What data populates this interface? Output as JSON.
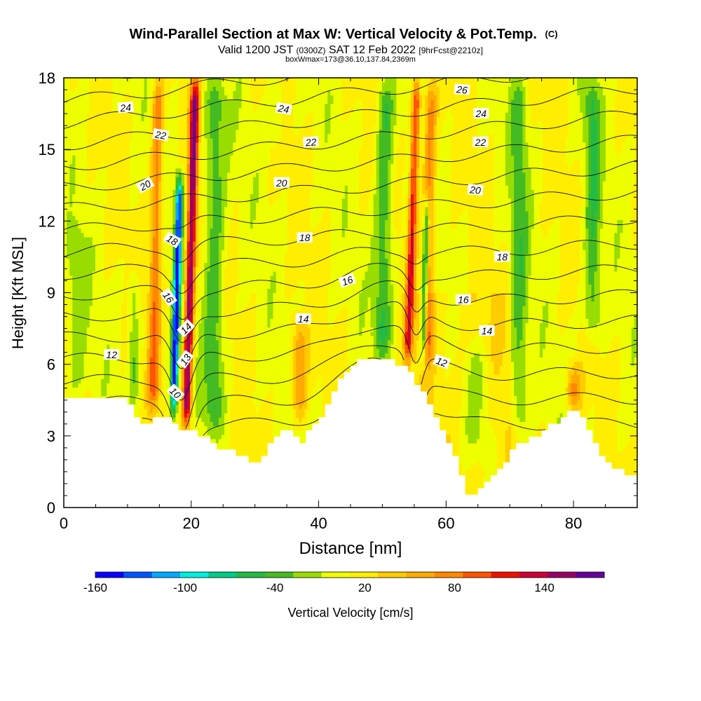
{
  "title": {
    "main": "Wind-Parallel Section at Max W: Vertical Velocity & Pot.Temp.",
    "main_tag": "(C)",
    "line2_a": "Valid 1200 JST",
    "line2_b": "(0300Z)",
    "line2_c": "SAT 12 Feb 2022",
    "line2_d": "[9hrFcst@2210z]",
    "line3": "boxWmax=173@36.10,137.84,2369m"
  },
  "chart_data": {
    "type": "heatmap",
    "xlabel": "Distance [nm]",
    "ylabel": "Height [Kft MSL]",
    "xlim": [
      0,
      90
    ],
    "ylim": [
      0,
      18
    ],
    "x_ticks": [
      "0",
      "20",
      "40",
      "60",
      "80"
    ],
    "x_tick_values": [
      0,
      20,
      40,
      60,
      80
    ],
    "y_ticks": [
      "0",
      "3",
      "6",
      "9",
      "12",
      "15",
      "18"
    ],
    "y_tick_values": [
      0,
      3,
      6,
      9,
      12,
      15,
      18
    ],
    "colorbar": {
      "label": "Vertical Velocity [cm/s]",
      "tick_labels": [
        "-160",
        "-100",
        "-40",
        "20",
        "80",
        "140"
      ],
      "tick_values": [
        -160,
        -100,
        -40,
        20,
        80,
        140
      ],
      "range": [
        -160,
        180
      ],
      "bin_width": 20,
      "colors": [
        "#0a00ff",
        "#0055ff",
        "#00aaff",
        "#00eedd",
        "#00cc88",
        "#22bb44",
        "#44bb22",
        "#99dd00",
        "#eeff00",
        "#ffee00",
        "#ffcc00",
        "#ffaa00",
        "#ff8800",
        "#ff5500",
        "#ee1100",
        "#cc0033",
        "#990066",
        "#660099"
      ]
    },
    "terrain_kft": [
      [
        0,
        4.5
      ],
      [
        10,
        4.5
      ],
      [
        11,
        4.0
      ],
      [
        13,
        3.5
      ],
      [
        15,
        3.8
      ],
      [
        17,
        3.6
      ],
      [
        18,
        3.3
      ],
      [
        21,
        3.1
      ],
      [
        24,
        2.6
      ],
      [
        28,
        2.2
      ],
      [
        30,
        1.9
      ],
      [
        32,
        2.4
      ],
      [
        34,
        3.2
      ],
      [
        36,
        3.1
      ],
      [
        37,
        2.6
      ],
      [
        39,
        3.3
      ],
      [
        41,
        4.0
      ],
      [
        43,
        5.2
      ],
      [
        45,
        5.8
      ],
      [
        47,
        6.3
      ],
      [
        49,
        6.1
      ],
      [
        52,
        6.1
      ],
      [
        54,
        6.0
      ],
      [
        56,
        5.0
      ],
      [
        58,
        4.0
      ],
      [
        60,
        3.0
      ],
      [
        61,
        2.5
      ],
      [
        62,
        1.7
      ],
      [
        63,
        0.9
      ],
      [
        64,
        0.4
      ],
      [
        65,
        0.6
      ],
      [
        67,
        1.2
      ],
      [
        69,
        1.8
      ],
      [
        71,
        2.5
      ],
      [
        73,
        2.8
      ],
      [
        75,
        3.1
      ],
      [
        77,
        3.5
      ],
      [
        79,
        3.9
      ],
      [
        80,
        4.1
      ],
      [
        82,
        3.7
      ],
      [
        83,
        3.0
      ],
      [
        84,
        2.4
      ],
      [
        86,
        1.8
      ],
      [
        88,
        1.5
      ],
      [
        90,
        1.3
      ]
    ],
    "updrafts": [
      {
        "x": 14,
        "z_bottom": 4.0,
        "z_top": 18,
        "tilt": 0.06,
        "w_max": 80,
        "width": 0.9
      },
      {
        "x": 19.2,
        "z_bottom": 3.2,
        "z_top": 18,
        "tilt": 0.1,
        "w_max": 165,
        "width": 0.7
      },
      {
        "x": 54.0,
        "z_bottom": 6.0,
        "z_top": 18,
        "tilt": 0.12,
        "w_max": 120,
        "width": 0.65
      },
      {
        "x": 57,
        "z_bottom": 6.0,
        "z_top": 18,
        "tilt": 0.05,
        "w_max": 70,
        "width": 1.0
      },
      {
        "x": 37,
        "z_bottom": 3.5,
        "z_top": 8,
        "tilt": 0.0,
        "w_max": 60,
        "width": 1.2
      },
      {
        "x": 80,
        "z_bottom": 4.0,
        "z_top": 6,
        "tilt": 0.0,
        "w_max": 80,
        "width": 1.2
      }
    ],
    "downdrafts": [
      {
        "x": 17.2,
        "z_bottom": 3.8,
        "z_top": 14,
        "tilt": 0.1,
        "w_min": -165,
        "width": 0.55
      },
      {
        "x": 23.5,
        "z_bottom": 3.2,
        "z_top": 18,
        "tilt": 0.02,
        "w_min": -55,
        "width": 1.6
      },
      {
        "x": 50.0,
        "z_bottom": 6.2,
        "z_top": 18,
        "tilt": 0.04,
        "w_min": -60,
        "width": 1.4
      },
      {
        "x": 56.3,
        "z_bottom": 6.0,
        "z_top": 13,
        "tilt": 0.1,
        "w_min": -110,
        "width": 0.45
      },
      {
        "x": 11.0,
        "z_bottom": 4.5,
        "z_top": 10,
        "tilt": 0.0,
        "w_min": -40,
        "width": 0.9
      },
      {
        "x": 71.5,
        "z_bottom": 3.0,
        "z_top": 18,
        "tilt": 0.0,
        "w_min": -45,
        "width": 1.3
      },
      {
        "x": 83.0,
        "z_bottom": 7.0,
        "z_top": 18,
        "tilt": 0.0,
        "w_min": -55,
        "width": 1.3
      },
      {
        "x": 2.0,
        "z_bottom": 4.5,
        "z_top": 12,
        "tilt": 0.0,
        "w_min": -30,
        "width": 1.5
      },
      {
        "x": 33.5,
        "z_bottom": 15,
        "z_top": 18,
        "tilt": 0.0,
        "w_min": -30,
        "width": 1.0
      },
      {
        "x": 65.0,
        "z_bottom": 2.0,
        "z_top": 7,
        "tilt": 0.0,
        "w_min": -30,
        "width": 2.0
      }
    ],
    "theta_contours": {
      "levels": [
        10,
        11,
        12,
        13,
        14,
        15,
        16,
        17,
        18,
        19,
        20,
        21,
        22,
        23,
        24,
        25,
        26
      ],
      "labeled_levels": [
        "10",
        "12",
        "13",
        "14",
        "16",
        "18",
        "20",
        "22",
        "24",
        "26"
      ],
      "labels": [
        {
          "text": "24",
          "x": 9.7,
          "z": 16.75,
          "angle": -5
        },
        {
          "text": "22",
          "x": 15.2,
          "z": 15.6,
          "angle": 10
        },
        {
          "text": "20",
          "x": 12.8,
          "z": 13.5,
          "angle": -30
        },
        {
          "text": "18",
          "x": 17.0,
          "z": 11.2,
          "angle": 30
        },
        {
          "text": "16",
          "x": 16.4,
          "z": 8.8,
          "angle": 55
        },
        {
          "text": "14",
          "x": 19.2,
          "z": 7.5,
          "angle": -45
        },
        {
          "text": "13",
          "x": 19.1,
          "z": 6.2,
          "angle": -55
        },
        {
          "text": "10",
          "x": 17.5,
          "z": 4.8,
          "angle": 45
        },
        {
          "text": "12",
          "x": 7.5,
          "z": 6.4,
          "angle": 0
        },
        {
          "text": "24",
          "x": 34.5,
          "z": 16.7,
          "angle": 10
        },
        {
          "text": "22",
          "x": 38.8,
          "z": 15.3,
          "angle": -5
        },
        {
          "text": "20",
          "x": 34.2,
          "z": 13.6,
          "angle": 0
        },
        {
          "text": "18",
          "x": 37.8,
          "z": 11.3,
          "angle": 0
        },
        {
          "text": "16",
          "x": 44.5,
          "z": 9.5,
          "angle": -20
        },
        {
          "text": "14",
          "x": 37.6,
          "z": 7.9,
          "angle": 0
        },
        {
          "text": "26",
          "x": 62.5,
          "z": 17.5,
          "angle": 5
        },
        {
          "text": "24",
          "x": 65.5,
          "z": 16.5,
          "angle": 0
        },
        {
          "text": "22",
          "x": 65.4,
          "z": 15.3,
          "angle": 0
        },
        {
          "text": "20",
          "x": 64.6,
          "z": 13.3,
          "angle": 5
        },
        {
          "text": "18",
          "x": 68.8,
          "z": 10.5,
          "angle": 0
        },
        {
          "text": "16",
          "x": 62.7,
          "z": 8.7,
          "angle": 0
        },
        {
          "text": "14",
          "x": 66.4,
          "z": 7.4,
          "angle": 0
        },
        {
          "text": "12",
          "x": 59.3,
          "z": 6.1,
          "angle": 20
        }
      ]
    }
  }
}
